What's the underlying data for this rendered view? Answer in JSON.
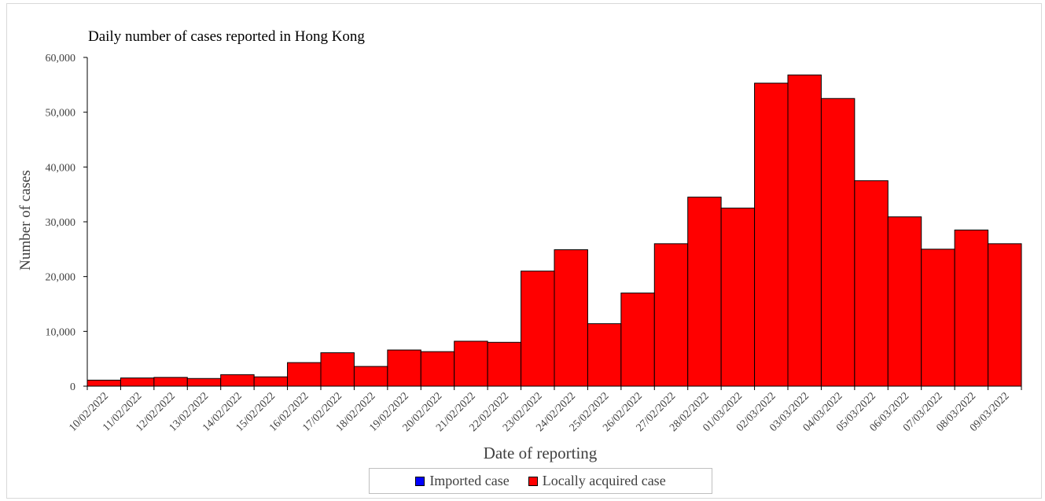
{
  "chart_data": {
    "type": "bar",
    "stacked": true,
    "title": "Daily number of cases reported in Hong Kong",
    "xlabel": "Date of reporting",
    "ylabel": "Number of  cases",
    "ylim": [
      0,
      60000
    ],
    "yticks": [
      "0",
      "10,000",
      "20,000",
      "30,000",
      "40,000",
      "50,000",
      "60,000"
    ],
    "categories": [
      "10/02/2022",
      "11/02/2022",
      "12/02/2022",
      "13/02/2022",
      "14/02/2022",
      "15/02/2022",
      "16/02/2022",
      "17/02/2022",
      "18/02/2022",
      "19/02/2022",
      "20/02/2022",
      "21/02/2022",
      "22/02/2022",
      "23/02/2022",
      "24/02/2022",
      "25/02/2022",
      "26/02/2022",
      "27/02/2022",
      "28/02/2022",
      "01/03/2022",
      "02/03/2022",
      "03/03/2022",
      "04/03/2022",
      "05/03/2022",
      "06/03/2022",
      "07/03/2022",
      "08/03/2022",
      "09/03/2022"
    ],
    "series": [
      {
        "name": "Imported case",
        "color": "#0000ff",
        "values": [
          0,
          0,
          0,
          0,
          0,
          0,
          0,
          0,
          0,
          0,
          0,
          0,
          0,
          0,
          0,
          0,
          0,
          0,
          0,
          0,
          0,
          0,
          0,
          0,
          0,
          0,
          0,
          0
        ]
      },
      {
        "name": "Locally acquired case",
        "color": "#ff0000",
        "values": [
          1100,
          1500,
          1600,
          1400,
          2100,
          1700,
          4300,
          6100,
          3600,
          6600,
          6300,
          8200,
          8000,
          21000,
          24900,
          11400,
          17000,
          26000,
          34500,
          32500,
          55300,
          56800,
          52500,
          37500,
          30900,
          25000,
          28500,
          26000
        ]
      }
    ],
    "legend_position": "bottom",
    "grid": false
  }
}
